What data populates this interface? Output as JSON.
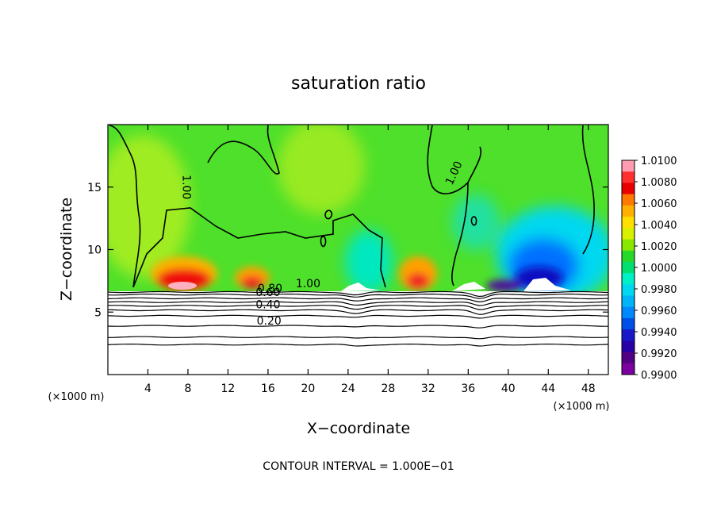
{
  "chart_data": {
    "type": "heatmap",
    "title": "saturation ratio",
    "xlabel": "X−coordinate",
    "ylabel": "Z−coordinate",
    "x_unit_label": "(×1000 m)",
    "y_unit_label": "(×1000 m)",
    "xlim": [
      0,
      50
    ],
    "ylim": [
      0,
      20
    ],
    "x_ticks": [
      4,
      8,
      12,
      16,
      20,
      24,
      28,
      32,
      36,
      40,
      44,
      48
    ],
    "y_ticks": [
      5,
      10,
      15
    ],
    "footer": "CONTOUR INTERVAL = 1.000E−01",
    "colorbar": {
      "labels": [
        "1.0100",
        "1.0080",
        "1.0060",
        "1.0040",
        "1.0020",
        "1.0000",
        "0.9980",
        "0.9960",
        "0.9940",
        "0.9920",
        "0.9900"
      ],
      "colors": [
        "#ff9bb0",
        "#ff3030",
        "#e80000",
        "#ff7800",
        "#ffb000",
        "#ffe000",
        "#d8f000",
        "#8ae800",
        "#28d828",
        "#00e070",
        "#00f0c8",
        "#00d8f0",
        "#00b4f8",
        "#0088ff",
        "#0050e8",
        "#1818c8",
        "#2800a8",
        "#500080",
        "#7a00a0"
      ]
    },
    "contour_labels": [
      {
        "text": "1.00",
        "x": 7.5,
        "z": 15.0
      },
      {
        "text": "1.00",
        "x": 34.9,
        "z": 16.0
      },
      {
        "text": "1.00",
        "x": 20.0,
        "z": 7.0
      },
      {
        "text": "0.80",
        "x": 16.2,
        "z": 6.6
      },
      {
        "text": "0.60",
        "x": 16.0,
        "z": 6.3
      },
      {
        "text": "0.40",
        "x": 16.0,
        "z": 5.3
      },
      {
        "text": "0.20",
        "x": 16.1,
        "z": 4.0
      }
    ],
    "low_contours_z": [
      6.6,
      6.4,
      6.1,
      5.8,
      5.5,
      5.15,
      4.7,
      3.9,
      3.0,
      2.4
    ]
  }
}
